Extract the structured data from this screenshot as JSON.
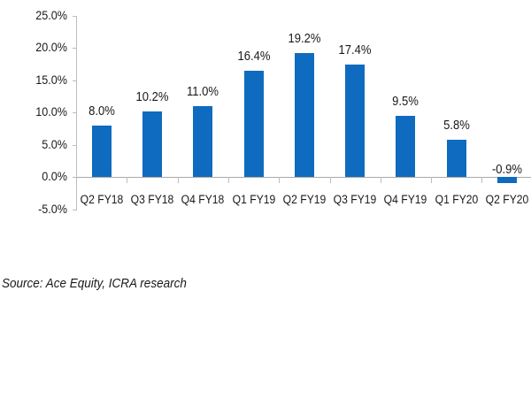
{
  "chart_data": {
    "type": "bar",
    "title": "",
    "xlabel": "",
    "ylabel": "",
    "categories": [
      "Q2 FY18",
      "Q3 FY18",
      "Q4 FY18",
      "Q1 FY19",
      "Q2 FY19",
      "Q3 FY19",
      "Q4 FY19",
      "Q1 FY20",
      "Q2 FY20"
    ],
    "values": [
      8.0,
      10.2,
      11.0,
      16.4,
      19.2,
      17.4,
      9.5,
      5.8,
      -0.9
    ],
    "data_labels": [
      "8.0%",
      "10.2%",
      "11.0%",
      "16.4%",
      "19.2%",
      "17.4%",
      "9.5%",
      "5.8%",
      "-0.9%"
    ],
    "ylim": [
      -5.0,
      25.0
    ],
    "yticks": [
      "25.0%",
      "20.0%",
      "15.0%",
      "10.0%",
      "5.0%",
      "0.0%",
      "-5.0%"
    ],
    "ytick_values": [
      25,
      20,
      15,
      10,
      5,
      0,
      -5
    ],
    "grid": false,
    "legend": null,
    "bar_color": "#0f6bbf"
  },
  "source_note": "Source: Ace Equity, ICRA research"
}
